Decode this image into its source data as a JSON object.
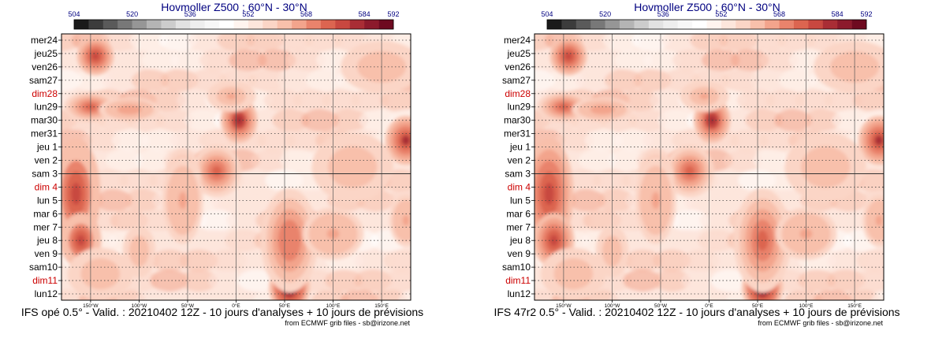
{
  "colors": {
    "sunday": "#cc0000",
    "normal_day": "#000000",
    "title": "#000080",
    "footer_small": "#000000"
  },
  "charts": [
    {
      "title": "Hovmoller Z500 : 60°N - 30°N",
      "caption": "IFS opé 0.5° - Valid. : 20210402 12Z - 10 jours d'analyses + 10 jours de prévisions",
      "source": "from ECMWF grib files - sb@irizone.net"
    },
    {
      "title": "Hovmoller Z500 : 60°N - 30°N",
      "caption": "IFS 47r2 0.5° - Valid. : 20210402 12Z - 10 jours d'analyses + 10 jours de prévisions",
      "source": "from ECMWF grib files - sb@irizone.net"
    }
  ],
  "chart_data": [
    {
      "type": "heatmap",
      "title": "Hovmoller Z500 : 60°N - 30°N",
      "variable": "Z500 (dam)",
      "colorbar": {
        "ticks": [
          504,
          520,
          536,
          552,
          568,
          584,
          592
        ],
        "colors": [
          "#1a1a1a",
          "#3c3c3c",
          "#5a5a5a",
          "#787878",
          "#969696",
          "#b4b4b4",
          "#cccccc",
          "#e2e2e2",
          "#eeeeee",
          "#f7f7f7",
          "#ffffff",
          "#fff4ef",
          "#fde6dc",
          "#fbd5c6",
          "#f8c0ab",
          "#f3a48c",
          "#e9836c",
          "#dc6550",
          "#c84840",
          "#a92d35",
          "#8c1a2c",
          "#6e0a20"
        ]
      },
      "x_ticks": [
        "150°W",
        "100°W",
        "50°W",
        "0°E",
        "50°E",
        "100°E",
        "150°E"
      ],
      "x_values": [
        -150,
        -100,
        -50,
        0,
        50,
        100,
        150
      ],
      "xlim": [
        -180,
        180
      ],
      "y_ticks": [
        {
          "label": "mer24",
          "sunday": false
        },
        {
          "label": "jeu25",
          "sunday": false
        },
        {
          "label": "ven26",
          "sunday": false
        },
        {
          "label": "sam27",
          "sunday": false
        },
        {
          "label": "dim28",
          "sunday": true
        },
        {
          "label": "lun29",
          "sunday": false
        },
        {
          "label": "mar30",
          "sunday": false
        },
        {
          "label": "mer31",
          "sunday": false
        },
        {
          "label": "jeu 1",
          "sunday": false
        },
        {
          "label": "ven 2",
          "sunday": false
        },
        {
          "label": "sam 3",
          "sunday": false
        },
        {
          "label": "dim 4",
          "sunday": true
        },
        {
          "label": "lun 5",
          "sunday": false
        },
        {
          "label": "mar 6",
          "sunday": false
        },
        {
          "label": "mer 7",
          "sunday": false
        },
        {
          "label": "jeu 8",
          "sunday": false
        },
        {
          "label": "ven 9",
          "sunday": false
        },
        {
          "label": "sam10",
          "sunday": false
        },
        {
          "label": "dim11",
          "sunday": true
        },
        {
          "label": "lun12",
          "sunday": false
        }
      ],
      "analysis_forecast_divider": "sam 3",
      "features": [
        {
          "lon": -145,
          "day": 1.2,
          "value": 578,
          "sx": 9,
          "sy": 1.1
        },
        {
          "lon": -150,
          "day": 5.0,
          "value": 574,
          "sx": 13,
          "sy": 0.9
        },
        {
          "lon": -110,
          "day": 5.2,
          "value": 567,
          "sx": 15,
          "sy": 0.7
        },
        {
          "lon": 3,
          "day": 6.0,
          "value": 581,
          "sx": 9,
          "sy": 1.3
        },
        {
          "lon": -5,
          "day": 4.2,
          "value": 565,
          "sx": 12,
          "sy": 0.9
        },
        {
          "lon": -20,
          "day": 9.8,
          "value": 574,
          "sx": 12,
          "sy": 1.5
        },
        {
          "lon": -55,
          "day": 10.5,
          "value": 570,
          "sx": 9,
          "sy": 1.8
        },
        {
          "lon": -165,
          "day": 11.5,
          "value": 576,
          "sx": 12,
          "sy": 3.2
        },
        {
          "lon": -160,
          "day": 15.0,
          "value": 576,
          "sx": 10,
          "sy": 1.6
        },
        {
          "lon": -55,
          "day": 12.0,
          "value": 566,
          "sx": 10,
          "sy": 2.5
        },
        {
          "lon": 55,
          "day": 18.5,
          "value": 588,
          "sx": 10,
          "sy": 1.5
        },
        {
          "lon": 55,
          "day": 15.0,
          "value": 571,
          "sx": 14,
          "sy": 3.0
        },
        {
          "lon": 100,
          "day": 14.5,
          "value": 566,
          "sx": 15,
          "sy": 1.5
        },
        {
          "lon": 175,
          "day": 7.5,
          "value": 580,
          "sx": 10,
          "sy": 1.4
        },
        {
          "lon": 175,
          "day": 13.5,
          "value": 566,
          "sx": 8,
          "sy": 1.5
        },
        {
          "lon": -140,
          "day": 17.5,
          "value": 563,
          "sx": 16,
          "sy": 1.5
        },
        {
          "lon": -100,
          "day": 15.8,
          "value": 563,
          "sx": 8,
          "sy": 1.5
        },
        {
          "lon": 120,
          "day": 9.5,
          "value": 564,
          "sx": 20,
          "sy": 2.0
        },
        {
          "lon": 150,
          "day": 2.0,
          "value": 564,
          "sx": 20,
          "sy": 1.5
        }
      ]
    },
    {
      "type": "heatmap",
      "title": "Hovmoller Z500 : 60°N - 30°N",
      "variable": "Z500 (dam)",
      "colorbar": {
        "ticks": [
          504,
          520,
          536,
          552,
          568,
          584,
          592
        ],
        "colors": [
          "#1a1a1a",
          "#3c3c3c",
          "#5a5a5a",
          "#787878",
          "#969696",
          "#b4b4b4",
          "#cccccc",
          "#e2e2e2",
          "#eeeeee",
          "#f7f7f7",
          "#ffffff",
          "#fff4ef",
          "#fde6dc",
          "#fbd5c6",
          "#f8c0ab",
          "#f3a48c",
          "#e9836c",
          "#dc6550",
          "#c84840",
          "#a92d35",
          "#8c1a2c",
          "#6e0a20"
        ]
      },
      "x_ticks": [
        "150°W",
        "100°W",
        "50°W",
        "0°E",
        "50°E",
        "100°E",
        "150°E"
      ],
      "x_values": [
        -150,
        -100,
        -50,
        0,
        50,
        100,
        150
      ],
      "xlim": [
        -180,
        180
      ],
      "y_ticks": [
        {
          "label": "mer24",
          "sunday": false
        },
        {
          "label": "jeu25",
          "sunday": false
        },
        {
          "label": "ven26",
          "sunday": false
        },
        {
          "label": "sam27",
          "sunday": false
        },
        {
          "label": "dim28",
          "sunday": true
        },
        {
          "label": "lun29",
          "sunday": false
        },
        {
          "label": "mar30",
          "sunday": false
        },
        {
          "label": "mer31",
          "sunday": false
        },
        {
          "label": "jeu 1",
          "sunday": false
        },
        {
          "label": "ven 2",
          "sunday": false
        },
        {
          "label": "sam 3",
          "sunday": false
        },
        {
          "label": "dim 4",
          "sunday": true
        },
        {
          "label": "lun 5",
          "sunday": false
        },
        {
          "label": "mar 6",
          "sunday": false
        },
        {
          "label": "mer 7",
          "sunday": false
        },
        {
          "label": "jeu 8",
          "sunday": false
        },
        {
          "label": "ven 9",
          "sunday": false
        },
        {
          "label": "sam10",
          "sunday": false
        },
        {
          "label": "dim11",
          "sunday": true
        },
        {
          "label": "lun12",
          "sunday": false
        }
      ],
      "analysis_forecast_divider": "sam 3",
      "features": [
        {
          "lon": -145,
          "day": 1.2,
          "value": 578,
          "sx": 9,
          "sy": 1.1
        },
        {
          "lon": -150,
          "day": 5.0,
          "value": 574,
          "sx": 13,
          "sy": 0.9
        },
        {
          "lon": -110,
          "day": 5.2,
          "value": 567,
          "sx": 15,
          "sy": 0.7
        },
        {
          "lon": 3,
          "day": 6.0,
          "value": 582,
          "sx": 9,
          "sy": 1.3
        },
        {
          "lon": -5,
          "day": 4.2,
          "value": 565,
          "sx": 12,
          "sy": 0.9
        },
        {
          "lon": -20,
          "day": 9.8,
          "value": 574,
          "sx": 12,
          "sy": 1.5
        },
        {
          "lon": -55,
          "day": 10.5,
          "value": 570,
          "sx": 9,
          "sy": 1.8
        },
        {
          "lon": -165,
          "day": 11.5,
          "value": 577,
          "sx": 12,
          "sy": 3.2
        },
        {
          "lon": -160,
          "day": 15.0,
          "value": 577,
          "sx": 10,
          "sy": 1.6
        },
        {
          "lon": -55,
          "day": 12.0,
          "value": 566,
          "sx": 10,
          "sy": 2.5
        },
        {
          "lon": 55,
          "day": 18.5,
          "value": 589,
          "sx": 10,
          "sy": 1.5
        },
        {
          "lon": 55,
          "day": 15.0,
          "value": 573,
          "sx": 14,
          "sy": 3.0
        },
        {
          "lon": 100,
          "day": 14.5,
          "value": 566,
          "sx": 15,
          "sy": 1.5
        },
        {
          "lon": 175,
          "day": 7.5,
          "value": 580,
          "sx": 10,
          "sy": 1.4
        },
        {
          "lon": 175,
          "day": 13.5,
          "value": 566,
          "sx": 8,
          "sy": 1.5
        },
        {
          "lon": -140,
          "day": 17.5,
          "value": 563,
          "sx": 16,
          "sy": 1.5
        },
        {
          "lon": -100,
          "day": 15.8,
          "value": 564,
          "sx": 8,
          "sy": 1.5
        },
        {
          "lon": 120,
          "day": 9.5,
          "value": 564,
          "sx": 20,
          "sy": 2.0
        },
        {
          "lon": 150,
          "day": 2.0,
          "value": 564,
          "sx": 20,
          "sy": 1.5
        }
      ]
    }
  ]
}
